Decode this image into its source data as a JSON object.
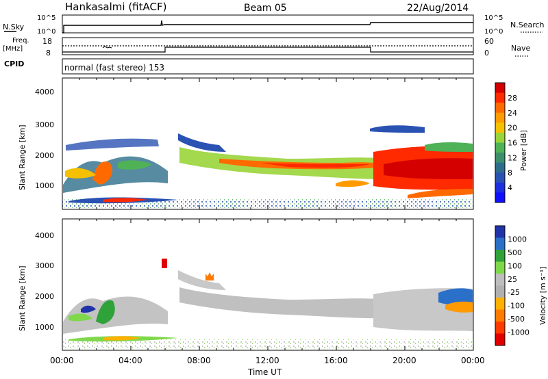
{
  "header": {
    "station": "Hankasalmi (fitACF)",
    "beam": "Beam 05",
    "date": "22/Aug/2014"
  },
  "summary": {
    "nsky_label": "N.Sky",
    "nsky_ticks": [
      "10^5",
      "10^0"
    ],
    "nsearch_label": "N.Search",
    "freq_label": "Freq.",
    "freq_unit": "[MHz]",
    "freq_ticks": [
      "18",
      "8"
    ],
    "nave_label": "Nave",
    "nave_ticks": [
      "60",
      "0"
    ],
    "cpid_label": "CPID",
    "cpid_text": "normal (fast stereo) 153"
  },
  "chart_data": [
    {
      "type": "heatmap",
      "title": "",
      "ylabel": "Slant Range [km]",
      "xlabel": "",
      "ylim": [
        180,
        4600
      ],
      "yticks": [
        "4000",
        "3000",
        "2000",
        "1000"
      ],
      "colorbar": {
        "label": "Power [dB]",
        "ticks": [
          "28",
          "24",
          "20",
          "16",
          "12",
          "8",
          "4"
        ],
        "colors": [
          "#d40000",
          "#ff2a00",
          "#ff6a00",
          "#ff9a00",
          "#f4c000",
          "#9ad43a",
          "#4fb257",
          "#3d8f6a",
          "#2c6e8a",
          "#2a52b3",
          "#1e2fe0",
          "#1010ff"
        ]
      }
    },
    {
      "type": "heatmap",
      "title": "",
      "ylabel": "Slant Range [km]",
      "xlabel": "Time UT",
      "ylim": [
        180,
        4600
      ],
      "yticks": [
        "4000",
        "3000",
        "2000",
        "1000"
      ],
      "xticks": [
        "00:00",
        "04:00",
        "08:00",
        "12:00",
        "16:00",
        "20:00",
        "00:00"
      ],
      "colorbar": {
        "label": "Velocity [m s⁻¹]",
        "ticks": [
          "1000",
          "500",
          "100",
          "25",
          "-25",
          "-100",
          "-500",
          "-1000"
        ],
        "colors": [
          "#2033a8",
          "#2a6fc8",
          "#2fa23a",
          "#7fd84a",
          "#bdbdbd",
          "#b0b0b0",
          "#ffb000",
          "#ff7a00",
          "#ff3a00",
          "#e00000"
        ]
      }
    }
  ]
}
